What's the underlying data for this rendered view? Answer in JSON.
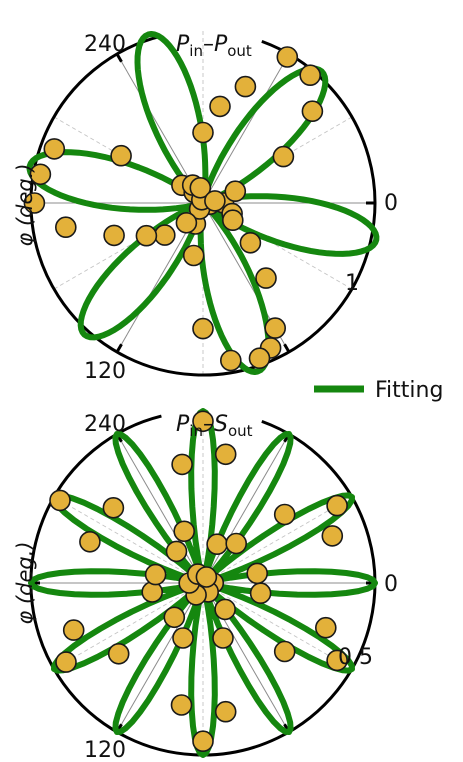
{
  "legend": {
    "label": "Fitting",
    "color": "#15870f"
  },
  "colors": {
    "fit": "#15870f",
    "marker_fill": "#e3b13a",
    "marker_edge": "#1a1a1a",
    "axis": "#000000",
    "grid": "#999999"
  },
  "chart_data": [
    {
      "type": "polar-scatter-with-fit",
      "title_main": "P",
      "title_sub1": "in",
      "title_dash": "–",
      "title_main2": "P",
      "title_sub2": "out",
      "ylabel": "φ (deg.)",
      "angle_unit": "deg",
      "angle_direction": "clockwise",
      "angle_labels": [
        {
          "angle": 0,
          "text": "0"
        },
        {
          "angle": 120,
          "text": "120"
        },
        {
          "angle": 240,
          "text": "240"
        }
      ],
      "radial_max": 1.0,
      "radial_label": {
        "value": 1,
        "text": "1"
      },
      "grid": "on",
      "fit_model": {
        "a": 1.0,
        "b": 0.03,
        "n": 3,
        "phase_deg": 12
      },
      "points": [
        {
          "angle": 0,
          "r": 0.12
        },
        {
          "angle": 10,
          "r": 0.04
        },
        {
          "angle": 20,
          "r": 0.18
        },
        {
          "angle": 30,
          "r": 0.2
        },
        {
          "angle": 40,
          "r": 0.36
        },
        {
          "angle": 50,
          "r": 0.57
        },
        {
          "angle": 60,
          "r": 0.84
        },
        {
          "angle": 65,
          "r": 0.93
        },
        {
          "angle": 70,
          "r": 0.96
        },
        {
          "angle": 80,
          "r": 0.93
        },
        {
          "angle": 90,
          "r": 0.73
        },
        {
          "angle": 100,
          "r": 0.31
        },
        {
          "angle": 110,
          "r": 0.13
        },
        {
          "angle": 120,
          "r": 0.04
        },
        {
          "angle": 130,
          "r": 0.15
        },
        {
          "angle": 140,
          "r": 0.29
        },
        {
          "angle": 150,
          "r": 0.38
        },
        {
          "angle": 160,
          "r": 0.55
        },
        {
          "angle": 170,
          "r": 0.81
        },
        {
          "angle": 180,
          "r": 0.98
        },
        {
          "angle": 190,
          "r": 0.96
        },
        {
          "angle": 200,
          "r": 0.92
        },
        {
          "angle": 210,
          "r": 0.55
        },
        {
          "angle": 220,
          "r": 0.16
        },
        {
          "angle": 230,
          "r": 0.08
        },
        {
          "angle": 240,
          "r": 0.12
        },
        {
          "angle": 250,
          "r": 0.02
        },
        {
          "angle": 260,
          "r": 0.09
        },
        {
          "angle": 270,
          "r": 0.41
        },
        {
          "angle": 280,
          "r": 0.57
        },
        {
          "angle": 290,
          "r": 0.72
        },
        {
          "angle": 300,
          "r": 0.98
        },
        {
          "angle": 310,
          "r": 0.97
        },
        {
          "angle": 320,
          "r": 0.83
        },
        {
          "angle": 330,
          "r": 0.54
        },
        {
          "angle": 340,
          "r": 0.2
        },
        {
          "angle": 350,
          "r": 0.07
        }
      ]
    },
    {
      "type": "polar-scatter-with-fit",
      "title_main": "P",
      "title_sub1": "in",
      "title_dash": "–",
      "title_main2": "S",
      "title_sub2": "out",
      "ylabel": "φ (deg.)",
      "angle_unit": "deg",
      "angle_direction": "clockwise",
      "angle_labels": [
        {
          "angle": 0,
          "text": "0"
        },
        {
          "angle": 120,
          "text": "120"
        },
        {
          "angle": 240,
          "text": "240"
        }
      ],
      "radial_max": 0.5,
      "radial_label": {
        "value": 0.5,
        "text": "0.5"
      },
      "grid": "on",
      "fit_model": {
        "a": 0.5,
        "b": 0.0,
        "n": 6,
        "phase_deg": 0
      },
      "points": [
        {
          "angle": 0,
          "r": 0.03
        },
        {
          "angle": 10,
          "r": 0.17
        },
        {
          "angle": 20,
          "r": 0.38
        },
        {
          "angle": 30,
          "r": 0.45
        },
        {
          "angle": 40,
          "r": 0.31
        },
        {
          "angle": 50,
          "r": 0.1
        },
        {
          "angle": 60,
          "r": 0.03
        },
        {
          "angle": 70,
          "r": 0.17
        },
        {
          "angle": 80,
          "r": 0.38
        },
        {
          "angle": 90,
          "r": 0.46
        },
        {
          "angle": 100,
          "r": 0.36
        },
        {
          "angle": 110,
          "r": 0.17
        },
        {
          "angle": 120,
          "r": 0.04
        },
        {
          "angle": 130,
          "r": 0.13
        },
        {
          "angle": 140,
          "r": 0.32
        },
        {
          "angle": 150,
          "r": 0.46
        },
        {
          "angle": 160,
          "r": 0.4
        },
        {
          "angle": 170,
          "r": 0.15
        },
        {
          "angle": 180,
          "r": 0.04
        },
        {
          "angle": 190,
          "r": 0.14
        },
        {
          "angle": 200,
          "r": 0.35
        },
        {
          "angle": 210,
          "r": 0.48
        },
        {
          "angle": 220,
          "r": 0.34
        },
        {
          "angle": 230,
          "r": 0.12
        },
        {
          "angle": 240,
          "r": 0.03
        },
        {
          "angle": 250,
          "r": 0.16
        },
        {
          "angle": 260,
          "r": 0.35
        },
        {
          "angle": 270,
          "r": 0.47
        },
        {
          "angle": 280,
          "r": 0.38
        },
        {
          "angle": 290,
          "r": 0.12
        },
        {
          "angle": 300,
          "r": 0.02
        },
        {
          "angle": 310,
          "r": 0.15
        },
        {
          "angle": 320,
          "r": 0.31
        },
        {
          "angle": 330,
          "r": 0.45
        },
        {
          "angle": 340,
          "r": 0.4
        },
        {
          "angle": 350,
          "r": 0.16
        }
      ]
    }
  ]
}
